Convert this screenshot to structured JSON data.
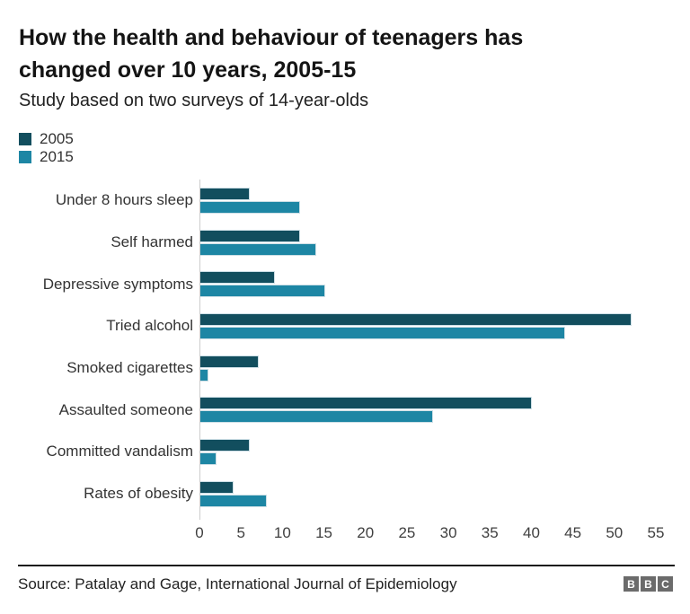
{
  "header": {
    "title": "How the health and behaviour of teenagers has changed over 10 years, 2005-15",
    "subtitle": "Study based on two surveys of 14-year-olds"
  },
  "legend": [
    {
      "label": "2005",
      "color": "#124e5e"
    },
    {
      "label": "2015",
      "color": "#1d86a4"
    }
  ],
  "chart_data": {
    "type": "bar",
    "orientation": "horizontal",
    "title": "How the health and behaviour of teenagers has changed over 10 years, 2005-15",
    "subtitle": "Study based on two surveys of 14-year-olds",
    "categories": [
      "Under 8 hours sleep",
      "Self harmed",
      "Depressive symptoms",
      "Tried alcohol",
      "Smoked cigarettes",
      "Assaulted someone",
      "Committed vandalism",
      "Rates of obesity"
    ],
    "series": [
      {
        "name": "2005",
        "color": "#124e5e",
        "values": [
          6,
          12,
          9,
          52,
          7,
          40,
          6,
          4
        ]
      },
      {
        "name": "2015",
        "color": "#1d86a4",
        "values": [
          12,
          14,
          15,
          44,
          1,
          28,
          2,
          8
        ]
      }
    ],
    "xlabel": "",
    "ylabel": "",
    "xlim": [
      0,
      55
    ],
    "x_ticks": [
      0,
      5,
      10,
      15,
      20,
      25,
      30,
      35,
      40,
      45,
      50,
      55
    ],
    "grid": false,
    "legend_position": "top-left",
    "axis_line_color": "#cccccc"
  },
  "footer": {
    "source": "Source: Patalay and Gage, International Journal of Epidemiology",
    "logo_letters": [
      "B",
      "B",
      "C"
    ]
  }
}
